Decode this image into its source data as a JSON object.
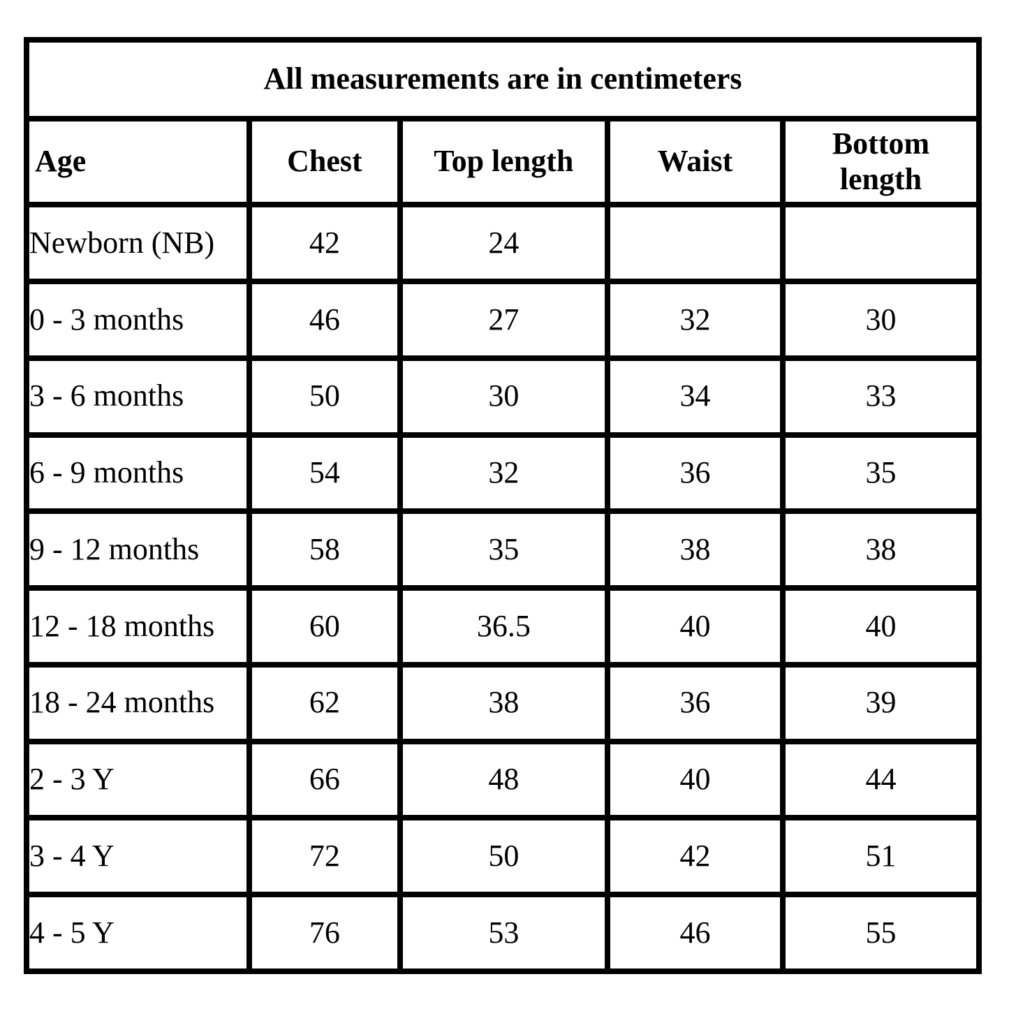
{
  "title": "All measurements are in centimeters",
  "columns": {
    "age": "Age",
    "chest": "Chest",
    "top_length": "Top length",
    "waist": "Waist",
    "bottom_length": "Bottom length"
  },
  "rows": [
    {
      "age": "Newborn (NB)",
      "chest": "42",
      "top_length": "24",
      "waist": "",
      "bottom_length": ""
    },
    {
      "age": "0 - 3 months",
      "chest": "46",
      "top_length": "27",
      "waist": "32",
      "bottom_length": "30"
    },
    {
      "age": "3 - 6 months",
      "chest": "50",
      "top_length": "30",
      "waist": "34",
      "bottom_length": "33"
    },
    {
      "age": "6 - 9 months",
      "chest": "54",
      "top_length": "32",
      "waist": "36",
      "bottom_length": "35"
    },
    {
      "age": "9 - 12 months",
      "chest": "58",
      "top_length": "35",
      "waist": "38",
      "bottom_length": "38"
    },
    {
      "age": "12 - 18 months",
      "chest": "60",
      "top_length": "36.5",
      "waist": "40",
      "bottom_length": "40"
    },
    {
      "age": "18 - 24 months",
      "chest": "62",
      "top_length": "38",
      "waist": "36",
      "bottom_length": "39"
    },
    {
      "age": "2 - 3 Y",
      "chest": "66",
      "top_length": "48",
      "waist": "40",
      "bottom_length": "44"
    },
    {
      "age": "3 - 4 Y",
      "chest": "72",
      "top_length": "50",
      "waist": "42",
      "bottom_length": "51"
    },
    {
      "age": "4 - 5 Y",
      "chest": "76",
      "top_length": "53",
      "waist": "46",
      "bottom_length": "55"
    }
  ],
  "colors": {
    "border": "#000000",
    "background": "#ffffff",
    "text": "#000000"
  }
}
